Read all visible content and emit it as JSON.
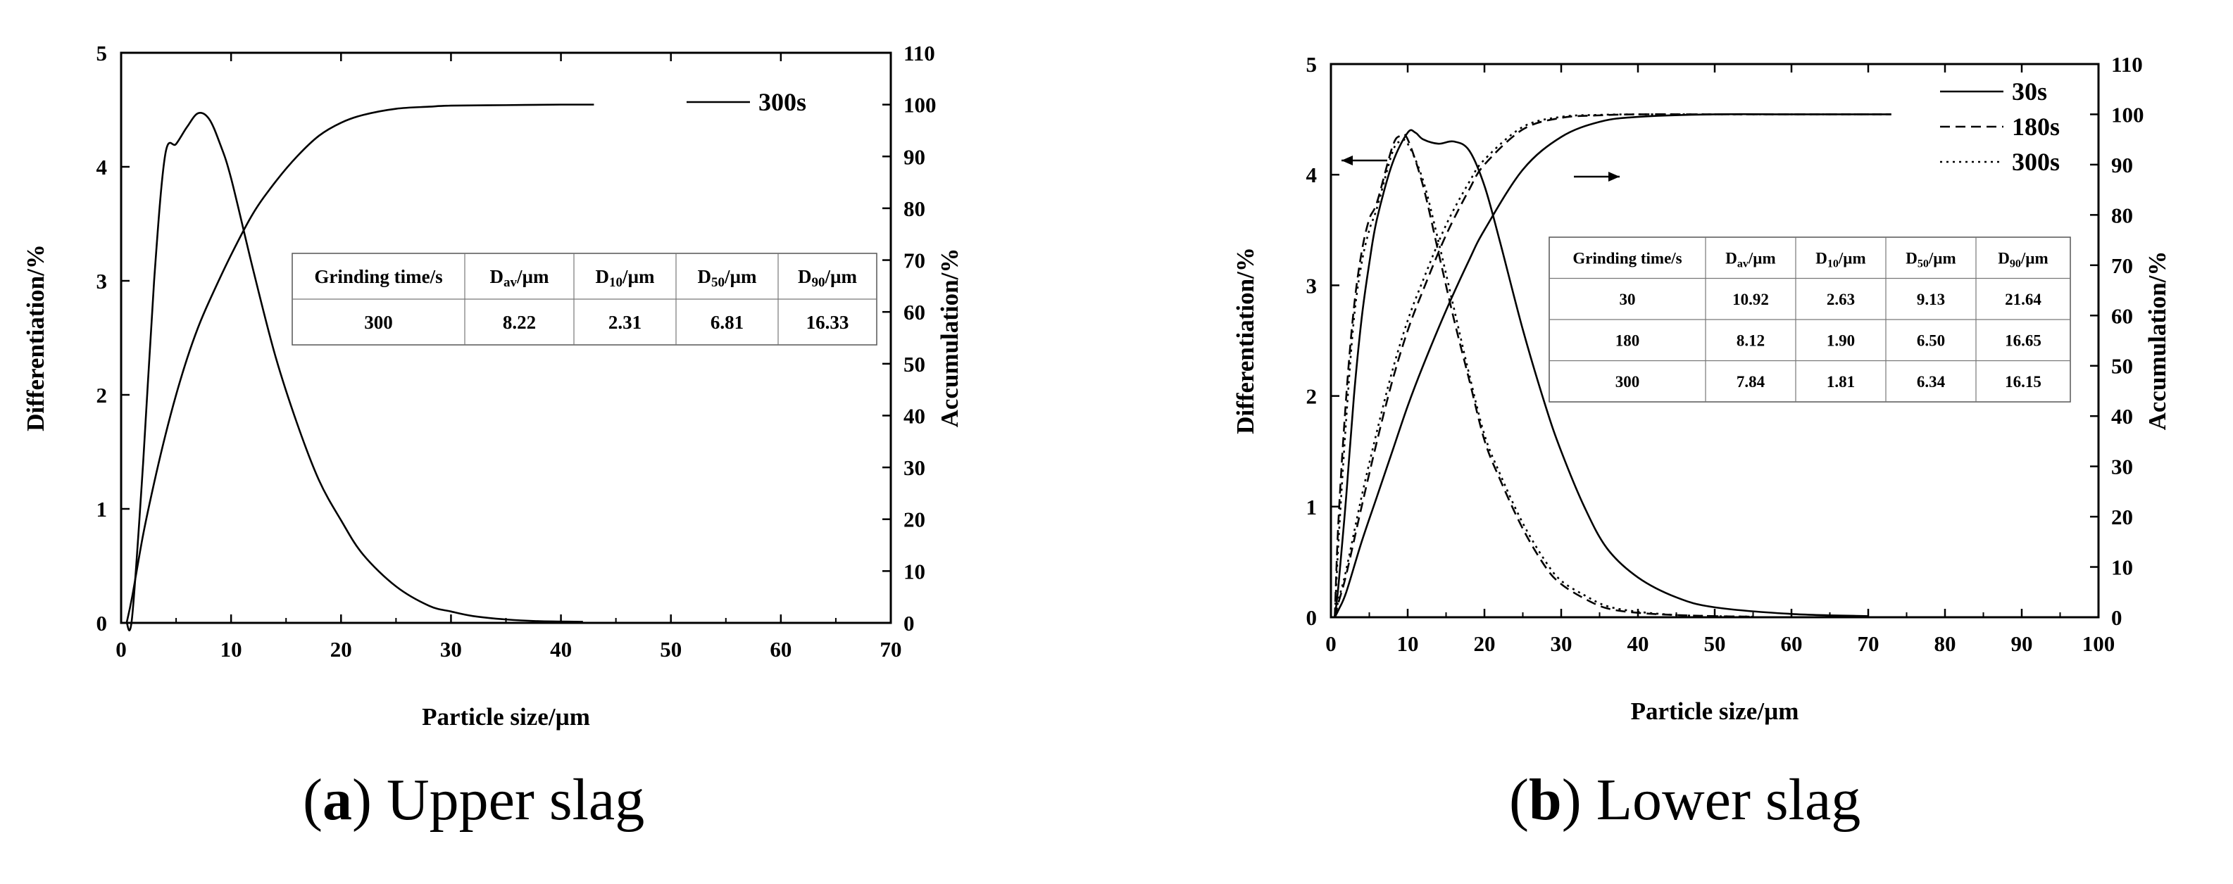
{
  "chart_data": [
    {
      "type": "line",
      "caption_letter": "a",
      "caption_text": "Upper slag",
      "xlabel": "Particle size/µm",
      "ylabel_left": "Differentiation/%",
      "ylabel_right": "Accumulation/%",
      "xlim": [
        0,
        70
      ],
      "xticks": [
        0,
        10,
        20,
        30,
        40,
        50,
        60,
        70
      ],
      "ylim_left": [
        0,
        5
      ],
      "yticks_left": [
        0,
        1,
        2,
        3,
        4,
        5
      ],
      "ylim_right": [
        0,
        110
      ],
      "yticks_right": [
        0,
        10,
        20,
        30,
        40,
        50,
        60,
        70,
        80,
        90,
        100,
        110
      ],
      "legend": [
        {
          "label": "300s",
          "style": "solid"
        }
      ],
      "series": [
        {
          "name": "300s differentiation",
          "axis": "left",
          "style": "solid",
          "x": [
            0.5,
            1,
            2,
            3,
            4,
            5,
            6,
            7,
            8,
            9,
            10,
            12,
            14,
            16,
            18,
            20,
            22,
            25,
            28,
            30,
            32,
            35,
            38,
            42
          ],
          "y": [
            0,
            0.05,
            1.4,
            3.0,
            4.1,
            4.2,
            4.35,
            4.47,
            4.42,
            4.2,
            3.9,
            3.1,
            2.35,
            1.75,
            1.25,
            0.9,
            0.6,
            0.32,
            0.15,
            0.1,
            0.06,
            0.03,
            0.015,
            0.01
          ]
        },
        {
          "name": "300s accumulation",
          "axis": "right",
          "style": "solid",
          "x": [
            0.5,
            1,
            2,
            3,
            4,
            5,
            6,
            7,
            8,
            10,
            12,
            14,
            16,
            18,
            20,
            22,
            25,
            28,
            30,
            35,
            40,
            43
          ],
          "y": [
            0,
            5,
            17,
            27,
            36,
            44,
            51,
            57,
            62,
            71,
            79,
            85,
            90,
            94,
            96.5,
            98,
            99.2,
            99.6,
            99.8,
            99.9,
            100,
            100
          ]
        }
      ],
      "table": {
        "headers": [
          "Grinding time/s",
          "D_av/µm",
          "D_10/µm",
          "D_50/µm",
          "D_90/µm"
        ],
        "rows": [
          [
            "300",
            "8.22",
            "2.31",
            "6.81",
            "16.33"
          ]
        ]
      }
    },
    {
      "type": "line",
      "caption_letter": "b",
      "caption_text": "Lower slag",
      "xlabel": "Particle size/µm",
      "ylabel_left": "Differentiation/%",
      "ylabel_right": "Accumulation/%",
      "xlim": [
        0,
        100
      ],
      "xticks": [
        0,
        10,
        20,
        30,
        40,
        50,
        60,
        70,
        80,
        90,
        100
      ],
      "ylim_left": [
        0,
        5
      ],
      "yticks_left": [
        0,
        1,
        2,
        3,
        4,
        5
      ],
      "ylim_right": [
        0,
        110
      ],
      "yticks_right": [
        0,
        10,
        20,
        30,
        40,
        50,
        60,
        70,
        80,
        90,
        100,
        110
      ],
      "legend": [
        {
          "label": "30s",
          "style": "solid"
        },
        {
          "label": "180s",
          "style": "dashed"
        },
        {
          "label": "300s",
          "style": "dotted"
        }
      ],
      "series": [
        {
          "name": "30s differentiation",
          "axis": "left",
          "style": "solid",
          "x": [
            0.5,
            1,
            2,
            3,
            4,
            5,
            6,
            8,
            10,
            11,
            12,
            14,
            16,
            18,
            20,
            22,
            25,
            28,
            30,
            33,
            36,
            40,
            45,
            50,
            60,
            70
          ],
          "y": [
            0,
            0.3,
            1.1,
            2.0,
            2.7,
            3.2,
            3.6,
            4.1,
            4.38,
            4.38,
            4.32,
            4.28,
            4.3,
            4.22,
            3.9,
            3.4,
            2.6,
            1.9,
            1.5,
            1.0,
            0.62,
            0.36,
            0.18,
            0.09,
            0.03,
            0.01
          ]
        },
        {
          "name": "180s differentiation",
          "axis": "left",
          "style": "dashed",
          "x": [
            0.5,
            1,
            2,
            3,
            4,
            5,
            6,
            8,
            9,
            10,
            12,
            14,
            16,
            18,
            20,
            22,
            25,
            28,
            30,
            33,
            36,
            40,
            45,
            50,
            55
          ],
          "y": [
            0,
            0.9,
            2.0,
            2.8,
            3.3,
            3.6,
            3.75,
            4.25,
            4.35,
            4.32,
            3.9,
            3.3,
            2.7,
            2.15,
            1.6,
            1.25,
            0.8,
            0.45,
            0.3,
            0.17,
            0.08,
            0.04,
            0.02,
            0.01,
            0.005
          ]
        },
        {
          "name": "300s differentiation",
          "axis": "left",
          "style": "dotted",
          "x": [
            0.5,
            1,
            2,
            3,
            4,
            5,
            6,
            8,
            9,
            10,
            12,
            14,
            16,
            18,
            20,
            22,
            25,
            28,
            30,
            33,
            36,
            40,
            45,
            50,
            55
          ],
          "y": [
            0,
            0.7,
            1.8,
            2.7,
            3.2,
            3.5,
            3.7,
            4.2,
            4.3,
            4.28,
            3.95,
            3.4,
            2.8,
            2.2,
            1.65,
            1.3,
            0.85,
            0.5,
            0.33,
            0.2,
            0.1,
            0.05,
            0.02,
            0.01,
            0.005
          ]
        },
        {
          "name": "30s accumulation",
          "axis": "right",
          "style": "solid",
          "x": [
            0.5,
            1,
            2,
            4,
            6,
            8,
            10,
            12,
            15,
            18,
            20,
            25,
            30,
            35,
            40,
            50,
            60,
            73
          ],
          "y": [
            0,
            1.5,
            5,
            15,
            24,
            33,
            42,
            50,
            61,
            71,
            77,
            89,
            95.5,
            98.5,
            99.5,
            100,
            100,
            100
          ]
        },
        {
          "name": "180s accumulation",
          "axis": "right",
          "style": "dashed",
          "x": [
            0.5,
            1,
            2,
            4,
            6,
            8,
            10,
            12,
            15,
            18,
            20,
            25,
            30,
            35,
            40,
            50,
            60,
            73
          ],
          "y": [
            0,
            3,
            8.5,
            22,
            35,
            47,
            57,
            65,
            76,
            85,
            90,
            97,
            99.3,
            99.8,
            100,
            100,
            100,
            100
          ]
        },
        {
          "name": "300s accumulation",
          "axis": "right",
          "style": "dotted",
          "x": [
            0.5,
            1,
            2,
            4,
            6,
            8,
            10,
            12,
            15,
            18,
            20,
            25,
            30,
            35,
            40,
            50,
            60,
            73
          ],
          "y": [
            0,
            3.5,
            9.5,
            24,
            37,
            49,
            59,
            67,
            78,
            86.5,
            91,
            97.5,
            99.5,
            99.9,
            100,
            100,
            100,
            100
          ]
        }
      ],
      "annotations": [
        {
          "type": "arrow",
          "text": "←",
          "meaning": "left-axis curves"
        },
        {
          "type": "arrow",
          "text": "→",
          "meaning": "right-axis curves"
        }
      ],
      "table": {
        "headers": [
          "Grinding time/s",
          "D_av/µm",
          "D_10/µm",
          "D_50/µm",
          "D_90/µm"
        ],
        "rows": [
          [
            "30",
            "10.92",
            "2.63",
            "9.13",
            "21.64"
          ],
          [
            "180",
            "8.12",
            "1.90",
            "6.50",
            "16.65"
          ],
          [
            "300",
            "7.84",
            "1.81",
            "6.34",
            "16.15"
          ]
        ]
      }
    }
  ]
}
